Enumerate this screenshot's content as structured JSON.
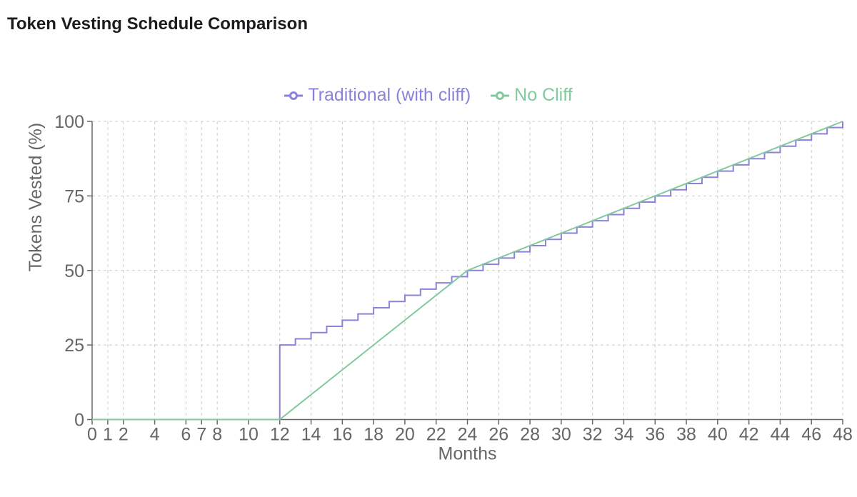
{
  "chart_data": {
    "type": "line",
    "title": "Token Vesting Schedule Comparison",
    "xlabel": "Months",
    "ylabel": "Tokens Vested (%)",
    "xlim": [
      0,
      48
    ],
    "ylim": [
      0,
      100
    ],
    "grid": "dashed",
    "legend_position": "top-center",
    "x_ticks": [
      0,
      1,
      2,
      4,
      6,
      7,
      8,
      10,
      12,
      14,
      16,
      18,
      20,
      22,
      24,
      26,
      28,
      30,
      32,
      34,
      36,
      38,
      40,
      42,
      44,
      46,
      48
    ],
    "y_ticks": [
      0,
      25,
      50,
      75,
      100
    ],
    "x": [
      0,
      1,
      2,
      3,
      4,
      5,
      6,
      7,
      8,
      9,
      10,
      11,
      12,
      13,
      14,
      15,
      16,
      17,
      18,
      19,
      20,
      21,
      22,
      23,
      24,
      25,
      26,
      27,
      28,
      29,
      30,
      31,
      32,
      33,
      34,
      35,
      36,
      37,
      38,
      39,
      40,
      41,
      42,
      43,
      44,
      45,
      46,
      47,
      48
    ],
    "series": [
      {
        "name": "Traditional (with cliff)",
        "color": "#8884d8",
        "line_type": "step-after",
        "values": [
          0,
          0,
          0,
          0,
          0,
          0,
          0,
          0,
          0,
          0,
          0,
          0,
          25,
          27.08,
          29.17,
          31.25,
          33.33,
          35.42,
          37.5,
          39.58,
          41.67,
          43.75,
          45.83,
          47.92,
          50,
          52.08,
          54.17,
          56.25,
          58.33,
          60.42,
          62.5,
          64.58,
          66.67,
          68.75,
          70.83,
          72.92,
          75,
          77.08,
          79.17,
          81.25,
          83.33,
          85.42,
          87.5,
          89.58,
          91.67,
          93.75,
          95.83,
          97.92,
          100
        ]
      },
      {
        "name": "No Cliff",
        "color": "#82ca9d",
        "line_type": "linear",
        "values": [
          0,
          0,
          0,
          0,
          0,
          0,
          0,
          0,
          0,
          0,
          0,
          0,
          0,
          4.17,
          8.33,
          12.5,
          16.67,
          20.83,
          25,
          29.17,
          33.33,
          37.5,
          41.67,
          45.83,
          50,
          52.08,
          54.17,
          56.25,
          58.33,
          60.42,
          62.5,
          64.58,
          66.67,
          68.75,
          70.83,
          72.92,
          75,
          77.08,
          79.17,
          81.25,
          83.33,
          85.42,
          87.5,
          89.58,
          91.67,
          93.75,
          95.83,
          97.92,
          100
        ]
      }
    ],
    "colors": {
      "axis": "#666666",
      "grid": "#cccccc",
      "tick_text": "#666666",
      "title_text": "#1b1c20"
    }
  }
}
